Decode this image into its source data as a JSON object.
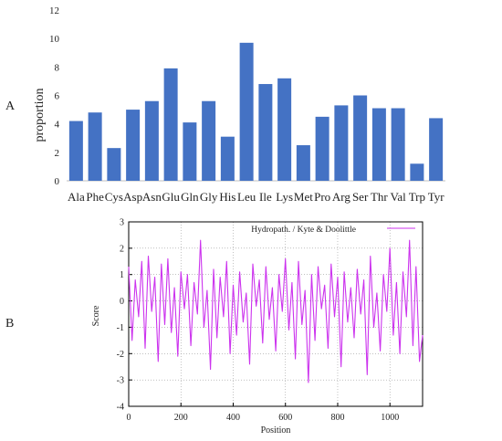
{
  "panel_labels": {
    "a": "A",
    "b": "B"
  },
  "chart_data": [
    {
      "type": "bar",
      "panel": "A",
      "title": "",
      "xlabel": "",
      "ylabel": "proportion",
      "ylim": [
        0,
        12
      ],
      "yticks": [
        0,
        2,
        4,
        6,
        8,
        10,
        12
      ],
      "grid": false,
      "color": "#4472c4",
      "categories": [
        "Ala",
        "Phe",
        "Cys",
        "Asp",
        "Asn",
        "Glu",
        "Gln",
        "Gly",
        "His",
        "Leu",
        "Ile",
        "Lys",
        "Met",
        "Pro",
        "Arg",
        "Ser",
        "Thr",
        "Val",
        "Trp",
        "Tyr"
      ],
      "values": [
        4.2,
        4.8,
        2.3,
        5.0,
        5.6,
        7.9,
        4.1,
        5.6,
        3.1,
        9.7,
        6.8,
        7.2,
        2.5,
        4.5,
        5.3,
        6.0,
        5.1,
        5.1,
        1.2,
        4.4
      ]
    },
    {
      "type": "line",
      "panel": "B",
      "title": "",
      "xlabel": "Position",
      "ylabel": "Score",
      "xlim": [
        0,
        1125
      ],
      "ylim": [
        -4,
        3
      ],
      "xticks": [
        0,
        200,
        400,
        600,
        800,
        1000
      ],
      "yticks": [
        -4,
        -3,
        -2,
        -1,
        0,
        1,
        2,
        3
      ],
      "grid": true,
      "legend": "top-right",
      "series": [
        {
          "name": "Hydropath. / Kyte & Doolittle",
          "color": "#cc33ee",
          "x": [
            0,
            13,
            25,
            38,
            50,
            63,
            75,
            88,
            100,
            113,
            125,
            138,
            150,
            163,
            175,
            188,
            200,
            213,
            225,
            238,
            250,
            263,
            275,
            288,
            300,
            313,
            325,
            338,
            350,
            363,
            375,
            388,
            400,
            413,
            425,
            438,
            450,
            463,
            475,
            488,
            500,
            513,
            525,
            538,
            550,
            563,
            575,
            588,
            600,
            613,
            625,
            638,
            650,
            663,
            675,
            688,
            700,
            713,
            725,
            738,
            750,
            763,
            775,
            788,
            800,
            813,
            825,
            838,
            850,
            863,
            875,
            888,
            900,
            913,
            925,
            938,
            950,
            963,
            975,
            988,
            1000,
            1013,
            1025,
            1038,
            1050,
            1063,
            1075,
            1088,
            1100,
            1113,
            1125
          ],
          "y": [
            1.3,
            -1.5,
            0.8,
            -0.6,
            1.5,
            -1.8,
            1.7,
            -0.4,
            0.9,
            -2.3,
            1.4,
            -0.9,
            1.6,
            -1.2,
            0.5,
            -2.1,
            1.1,
            -0.3,
            1.0,
            -1.7,
            0.7,
            -0.5,
            2.3,
            -1.0,
            0.4,
            -2.6,
            1.2,
            -1.4,
            0.9,
            -0.6,
            1.5,
            -2.0,
            0.6,
            -1.3,
            1.1,
            -0.8,
            0.3,
            -2.4,
            1.4,
            -0.2,
            0.8,
            -1.6,
            1.3,
            -0.7,
            0.5,
            -1.9,
            1.0,
            -0.4,
            1.6,
            -1.1,
            0.7,
            -2.2,
            1.5,
            -0.9,
            0.4,
            -3.1,
            1.0,
            -1.5,
            1.3,
            -0.3,
            0.6,
            -1.8,
            1.4,
            -0.6,
            0.9,
            -2.5,
            1.1,
            -0.8,
            0.5,
            -1.4,
            1.2,
            -0.5,
            0.8,
            -2.8,
            1.7,
            -1.0,
            0.3,
            -1.9,
            1.0,
            -0.4,
            2.0,
            -1.3,
            0.7,
            -2.0,
            1.1,
            -0.6,
            2.3,
            -1.7,
            1.3,
            -2.3,
            -1.3
          ]
        }
      ]
    }
  ]
}
